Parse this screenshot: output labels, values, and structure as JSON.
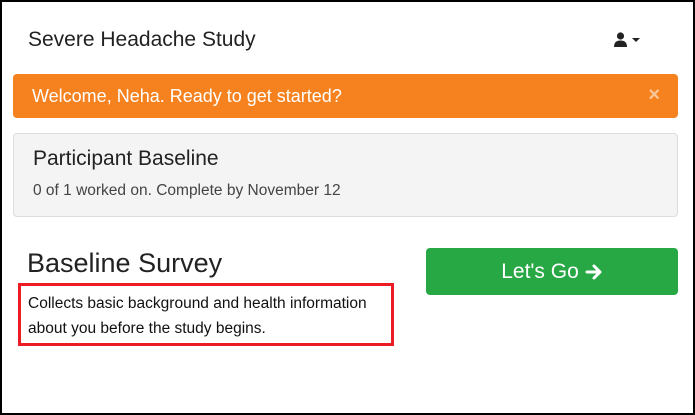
{
  "header": {
    "title": "Severe Headache Study",
    "user_icon": "user-icon",
    "menu_icon": "caret-down-icon"
  },
  "alert": {
    "message": "Welcome, Neha. Ready to get started?",
    "close_icon": "×",
    "color": "#f5821f"
  },
  "card": {
    "title": "Participant Baseline",
    "subtitle": "0 of 1 worked on. Complete by November 12"
  },
  "survey": {
    "title": "Baseline Survey",
    "description": "Collects basic background and health information about you before the study begins.",
    "highlight_color": "#ed1c24"
  },
  "button": {
    "label": "Let's Go",
    "icon": "arrow-right-icon",
    "color": "#28a745"
  }
}
